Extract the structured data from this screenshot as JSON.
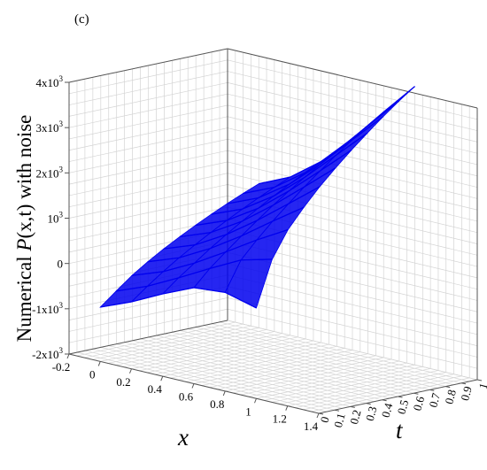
{
  "chart_data": {
    "type": "surface3d",
    "panel_label": "(c)",
    "xlabel": "x",
    "tlabel": "t",
    "zlabel_prefix": "Numerical ",
    "zlabel_func": "P",
    "zlabel_args": "(x,t)",
    "zlabel_suffix": " with noise",
    "xlim": [
      -0.2,
      1.4
    ],
    "tlim": [
      0,
      1
    ],
    "zlim": [
      -2000,
      4000
    ],
    "x_ticks": [
      "-0.2",
      "0",
      "0.2",
      "0.4",
      "0.6",
      "0.8",
      "1",
      "1.2",
      "1.4"
    ],
    "t_ticks": [
      "0",
      "0.1",
      "0.2",
      "0.3",
      "0.4",
      "0.5",
      "0.6",
      "0.7",
      "0.8",
      "0.9",
      "1"
    ],
    "z_ticks": [
      {
        "value": -2000,
        "label": "-2x10",
        "exp": "3"
      },
      {
        "value": -1000,
        "label": "-1x10",
        "exp": "3"
      },
      {
        "value": 0,
        "label": "0",
        "exp": ""
      },
      {
        "value": 1000,
        "label": "10",
        "exp": "3"
      },
      {
        "value": 2000,
        "label": "2x10",
        "exp": "3"
      },
      {
        "value": 3000,
        "label": "3x10",
        "exp": "3"
      },
      {
        "value": 4000,
        "label": "4x10",
        "exp": "3"
      }
    ],
    "surface_color": "#0000ee",
    "grid": true,
    "series": [
      {
        "x": [
          0,
          0.2,
          0.4,
          0.6,
          0.8,
          1.0
        ],
        "t": 0.0,
        "z": [
          -800,
          -520,
          -180,
          120,
          180,
          0
        ]
      },
      {
        "x": [
          0,
          0.2,
          0.4,
          0.6,
          0.8,
          1.0
        ],
        "t": 0.1,
        "z": [
          -520,
          -250,
          100,
          470,
          820,
          1000
        ]
      },
      {
        "x": [
          0,
          0.2,
          0.4,
          0.6,
          0.8,
          1.0
        ],
        "t": 0.2,
        "z": [
          -250,
          0,
          350,
          760,
          1190,
          1580
        ]
      },
      {
        "x": [
          0,
          0.2,
          0.4,
          0.6,
          0.8,
          1.0
        ],
        "t": 0.3,
        "z": [
          -20,
          230,
          600,
          1040,
          1530,
          2000
        ]
      },
      {
        "x": [
          0,
          0.2,
          0.4,
          0.6,
          0.8,
          1.0
        ],
        "t": 0.4,
        "z": [
          190,
          440,
          830,
          1310,
          1840,
          2380
        ]
      },
      {
        "x": [
          0,
          0.2,
          0.4,
          0.6,
          0.8,
          1.0
        ],
        "t": 0.5,
        "z": [
          380,
          640,
          1050,
          1570,
          2140,
          2720
        ]
      },
      {
        "x": [
          0,
          0.2,
          0.4,
          0.6,
          0.8,
          1.0
        ],
        "t": 0.6,
        "z": [
          560,
          830,
          1260,
          1810,
          2420,
          3040
        ]
      },
      {
        "x": [
          0,
          0.2,
          0.4,
          0.6,
          0.8,
          1.0
        ],
        "t": 0.7,
        "z": [
          730,
          1010,
          1460,
          2040,
          2690,
          3340
        ]
      },
      {
        "x": [
          0,
          0.2,
          0.4,
          0.6,
          0.8,
          1.0
        ],
        "t": 0.8,
        "z": [
          890,
          1180,
          1650,
          2260,
          2950,
          3630
        ]
      },
      {
        "x": [
          0,
          0.2,
          0.4,
          0.6,
          0.8,
          1.0
        ],
        "t": 0.9,
        "z": [
          1040,
          1340,
          1830,
          2470,
          3190,
          3900
        ]
      },
      {
        "x": [
          0,
          0.2,
          0.4,
          0.6,
          0.8,
          1.0
        ],
        "t": 1.0,
        "z": [
          1180,
          1490,
          2000,
          2670,
          3420,
          4150
        ]
      }
    ]
  }
}
